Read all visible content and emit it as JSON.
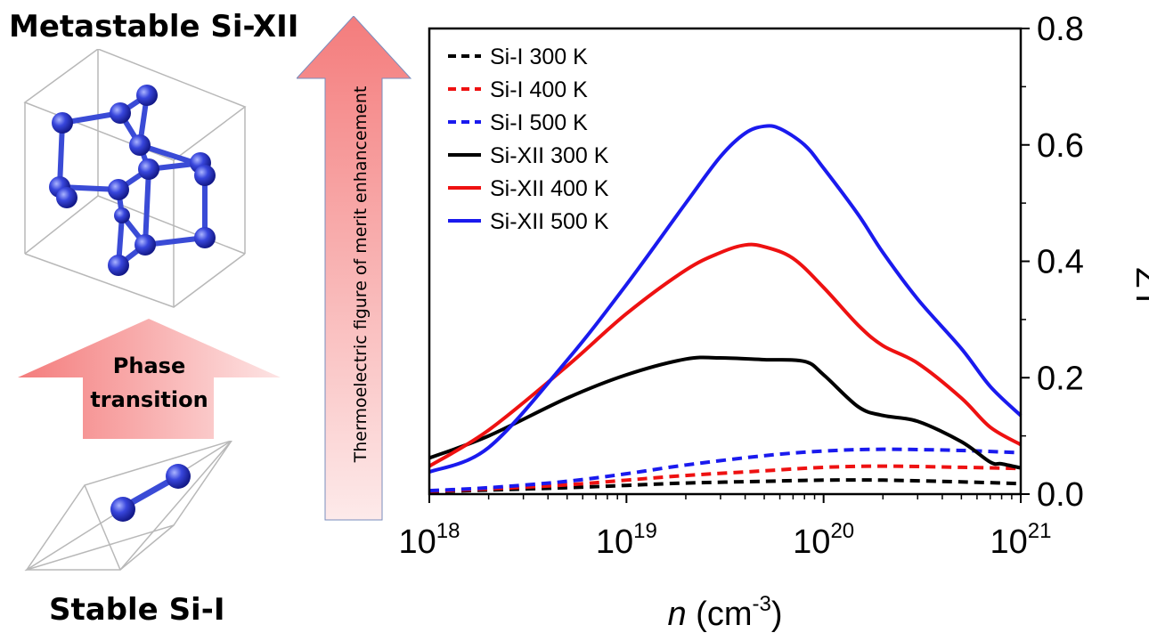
{
  "labels": {
    "metastable": "Metastable Si-XII",
    "stable": "Stable Si-I",
    "phase_line1": "Phase",
    "phase_line2": "transition",
    "enhancement": "Thermoelectric figure of merit enhancement"
  },
  "colors": {
    "atom": "#2f3fd8",
    "bond": "#3a4bd6",
    "arrow_pink": "#f47c7c",
    "series_black": "#000000",
    "series_red": "#ee1111",
    "series_blue": "#1a1aee"
  },
  "chart_data": {
    "type": "line",
    "xscale": "log",
    "xlim": [
      1e+18,
      1e+21
    ],
    "ylim": [
      0,
      0.8
    ],
    "xticks": [
      {
        "value": 1e+18,
        "base": "10",
        "exp": "18"
      },
      {
        "value": 1e+19,
        "base": "10",
        "exp": "19"
      },
      {
        "value": 1e+20,
        "base": "10",
        "exp": "20"
      },
      {
        "value": 1e+21,
        "base": "10",
        "exp": "21"
      }
    ],
    "yticks": [
      "0.0",
      "0.2",
      "0.4",
      "0.6",
      "0.8"
    ],
    "ytick_values": [
      0,
      0.2,
      0.4,
      0.6,
      0.8
    ],
    "xlabel_var": "n",
    "xlabel_unit": " (cm",
    "xlabel_exp": "-3",
    "xlabel_close": ")",
    "ylabel": "ZT",
    "legend_position": "top-left",
    "series": [
      {
        "name": "Si-I 300 K",
        "color": "#000000",
        "dashed": true,
        "x": [
          1e+18,
          2e+18,
          5e+18,
          1e+19,
          2e+19,
          5e+19,
          1e+20,
          2e+20,
          5e+20,
          1e+21
        ],
        "y": [
          0.004,
          0.007,
          0.011,
          0.015,
          0.019,
          0.022,
          0.024,
          0.024,
          0.021,
          0.018
        ]
      },
      {
        "name": "Si-I 400 K",
        "color": "#ee1111",
        "dashed": true,
        "x": [
          1e+18,
          2e+18,
          5e+18,
          1e+19,
          2e+19,
          5e+19,
          1e+20,
          2e+20,
          5e+20,
          1e+21
        ],
        "y": [
          0.005,
          0.009,
          0.016,
          0.024,
          0.032,
          0.04,
          0.046,
          0.048,
          0.046,
          0.044
        ]
      },
      {
        "name": "Si-I 500 K",
        "color": "#1a1aee",
        "dashed": true,
        "x": [
          1e+18,
          2e+18,
          5e+18,
          1e+19,
          2e+19,
          5e+19,
          1e+20,
          2e+20,
          5e+20,
          1e+21
        ],
        "y": [
          0.006,
          0.011,
          0.022,
          0.035,
          0.05,
          0.066,
          0.074,
          0.077,
          0.075,
          0.071
        ]
      },
      {
        "name": "Si-XII 300 K",
        "color": "#000000",
        "dashed": false,
        "x": [
          1e+18,
          2e+18,
          5e+18,
          1e+19,
          2e+19,
          3e+19,
          5e+19,
          8e+19,
          1e+20,
          1.5e+20,
          2e+20,
          3e+20,
          5e+20,
          7e+20,
          8e+20,
          1e+21
        ],
        "y": [
          0.062,
          0.1,
          0.165,
          0.205,
          0.232,
          0.234,
          0.231,
          0.228,
          0.205,
          0.15,
          0.135,
          0.125,
          0.09,
          0.055,
          0.052,
          0.045
        ]
      },
      {
        "name": "Si-XII 400 K",
        "color": "#ee1111",
        "dashed": false,
        "x": [
          1e+18,
          2e+18,
          5e+18,
          1e+19,
          2e+19,
          3e+19,
          4e+19,
          5e+19,
          7e+19,
          1e+20,
          1.5e+20,
          2e+20,
          3e+20,
          5e+20,
          7e+20,
          1e+21
        ],
        "y": [
          0.048,
          0.11,
          0.22,
          0.31,
          0.385,
          0.415,
          0.428,
          0.425,
          0.405,
          0.355,
          0.29,
          0.255,
          0.225,
          0.165,
          0.115,
          0.085
        ]
      },
      {
        "name": "Si-XII 500 K",
        "color": "#1a1aee",
        "dashed": false,
        "x": [
          1e+18,
          2e+18,
          5e+18,
          1e+19,
          2e+19,
          3e+19,
          4e+19,
          5e+19,
          6e+19,
          8e+19,
          1e+20,
          1.5e+20,
          2e+20,
          3e+20,
          5e+20,
          7e+20,
          1e+21
        ],
        "y": [
          0.038,
          0.08,
          0.23,
          0.36,
          0.5,
          0.58,
          0.62,
          0.632,
          0.628,
          0.6,
          0.56,
          0.48,
          0.415,
          0.335,
          0.25,
          0.185,
          0.135
        ]
      }
    ]
  }
}
